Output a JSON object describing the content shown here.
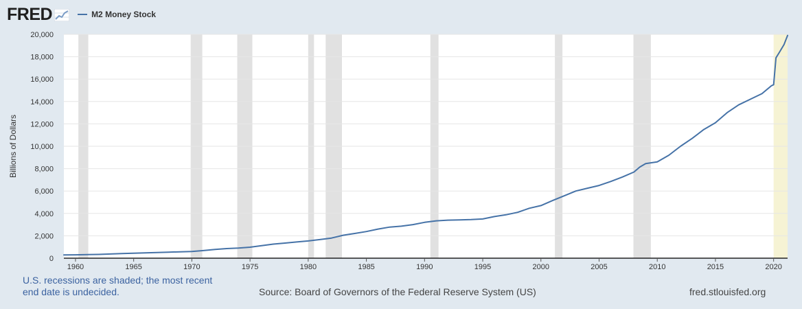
{
  "header": {
    "logo_text": "FRED",
    "logo_icon": "fred-graph-icon",
    "legend_label": "M2 Money Stock"
  },
  "footer": {
    "note": "U.S. recessions are shaded; the most recent end date is undecided.",
    "source": "Source: Board of Governors of the Federal Reserve System (US)",
    "site": "fred.stlouisfed.org"
  },
  "colors": {
    "page_background": "#e1e9f0",
    "plot_background": "#ffffff",
    "series_line": "#4572a7",
    "recession_shade": "#e1e1e1",
    "undecided_recession_shade": "#f6f3d4",
    "note_text": "#3b62a0"
  },
  "chart_data": {
    "type": "line",
    "title": "",
    "ylabel": "Billions of Dollars",
    "xlabel": "",
    "xlim": [
      1959.0,
      2021.2
    ],
    "ylim": [
      0,
      20000
    ],
    "yticks": [
      0,
      2000,
      4000,
      6000,
      8000,
      10000,
      12000,
      14000,
      16000,
      18000,
      20000
    ],
    "ytick_labels": [
      "0",
      "2,000",
      "4,000",
      "6,000",
      "8,000",
      "10,000",
      "12,000",
      "14,000",
      "16,000",
      "18,000",
      "20,000"
    ],
    "xticks": [
      1960,
      1965,
      1970,
      1975,
      1980,
      1985,
      1990,
      1995,
      2000,
      2005,
      2010,
      2015,
      2020
    ],
    "xtick_labels": [
      "1960",
      "1965",
      "1970",
      "1975",
      "1980",
      "1985",
      "1990",
      "1995",
      "2000",
      "2005",
      "2010",
      "2015",
      "2020"
    ],
    "grid": "horizontal",
    "legend_position": "top-left",
    "recessions": [
      {
        "start": 1960.25,
        "end": 1961.1
      },
      {
        "start": 1969.9,
        "end": 1970.9
      },
      {
        "start": 1973.9,
        "end": 1975.2
      },
      {
        "start": 1980.0,
        "end": 1980.5
      },
      {
        "start": 1981.5,
        "end": 1982.9
      },
      {
        "start": 1990.5,
        "end": 1991.2
      },
      {
        "start": 2001.2,
        "end": 2001.85
      },
      {
        "start": 2007.95,
        "end": 2009.45
      },
      {
        "start": 2020.0,
        "end": 2021.2,
        "undecided": true
      }
    ],
    "series": [
      {
        "name": "M2 Money Stock",
        "x": [
          1959.0,
          1960,
          1962,
          1964,
          1966,
          1968,
          1970,
          1971,
          1972,
          1973,
          1974,
          1975,
          1976,
          1977,
          1978,
          1979,
          1980,
          1981,
          1982,
          1983,
          1984,
          1985,
          1986,
          1987,
          1988,
          1989,
          1990,
          1991,
          1992,
          1993,
          1994,
          1995,
          1996,
          1997,
          1998,
          1999,
          2000,
          2001,
          2002,
          2003,
          2004,
          2005,
          2006,
          2007,
          2008,
          2008.5,
          2009,
          2010,
          2011,
          2011.5,
          2012,
          2013,
          2014,
          2015,
          2016,
          2017,
          2018,
          2019,
          2019.8,
          2020.0,
          2020.2,
          2020.5,
          2020.9,
          2021.2
        ],
        "values": [
          290,
          300,
          340,
          410,
          470,
          540,
          600,
          680,
          780,
          860,
          900,
          980,
          1120,
          1260,
          1350,
          1450,
          1540,
          1660,
          1800,
          2050,
          2210,
          2380,
          2600,
          2780,
          2860,
          3000,
          3200,
          3340,
          3400,
          3420,
          3450,
          3500,
          3720,
          3880,
          4100,
          4460,
          4700,
          5150,
          5570,
          6000,
          6250,
          6500,
          6850,
          7250,
          7700,
          8150,
          8450,
          8600,
          9200,
          9600,
          10000,
          10700,
          11500,
          12100,
          13000,
          13700,
          14200,
          14700,
          15400,
          15500,
          17900,
          18400,
          19100,
          19900
        ]
      }
    ]
  }
}
